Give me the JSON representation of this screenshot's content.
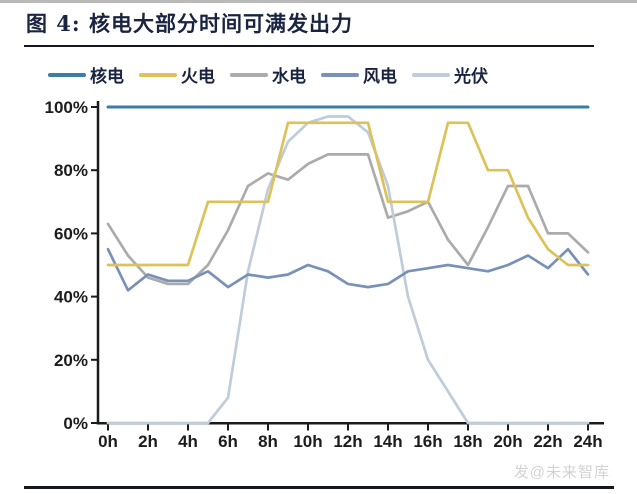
{
  "header": {
    "title": "图 4: 核电大部分时间可满发出力"
  },
  "colors": {
    "title_text": "#1a2440",
    "rule": "#16161e",
    "axis": "#1a1a1a",
    "axis_text": "#1c1c1c",
    "watermark_text": "#d2d2d2"
  },
  "watermark": {
    "text": "发@未来智库"
  },
  "chart_data": {
    "type": "line",
    "title": "核电大部分时间可满发出力",
    "xlabel": "",
    "ylabel": "",
    "xlim": [
      0,
      24
    ],
    "ylim": [
      0,
      100
    ],
    "grid": false,
    "legend_position": "top",
    "x": [
      0,
      1,
      2,
      3,
      4,
      5,
      6,
      7,
      8,
      9,
      10,
      11,
      12,
      13,
      14,
      15,
      16,
      17,
      18,
      19,
      20,
      21,
      22,
      23,
      24
    ],
    "x_tick_labels": [
      "0h",
      "2h",
      "4h",
      "6h",
      "8h",
      "10h",
      "12h",
      "14h",
      "16h",
      "18h",
      "20h",
      "22h",
      "24h"
    ],
    "x_tick_values": [
      0,
      2,
      4,
      6,
      8,
      10,
      12,
      14,
      16,
      18,
      20,
      22,
      24
    ],
    "y_tick_labels": [
      "0%",
      "20%",
      "40%",
      "60%",
      "80%",
      "100%"
    ],
    "y_tick_values": [
      0,
      20,
      40,
      60,
      80,
      100
    ],
    "series": [
      {
        "key": "nuclear",
        "name": "核电",
        "color": "#3B7DA6",
        "values": [
          100,
          100,
          100,
          100,
          100,
          100,
          100,
          100,
          100,
          100,
          100,
          100,
          100,
          100,
          100,
          100,
          100,
          100,
          100,
          100,
          100,
          100,
          100,
          100,
          100
        ]
      },
      {
        "key": "thermal",
        "name": "火电",
        "color": "#DCC258",
        "values": [
          50,
          50,
          50,
          50,
          50,
          70,
          70,
          70,
          70,
          95,
          95,
          95,
          95,
          95,
          70,
          70,
          70,
          95,
          95,
          80,
          80,
          65,
          55,
          50,
          50
        ]
      },
      {
        "key": "hydro",
        "name": "水电",
        "color": "#ABABAB",
        "values": [
          63,
          53,
          46,
          44,
          44,
          50,
          61,
          75,
          79,
          77,
          82,
          85,
          85,
          85,
          65,
          67,
          70,
          58,
          50,
          62,
          75,
          75,
          60,
          60,
          54
        ]
      },
      {
        "key": "wind",
        "name": "风电",
        "color": "#7991B8",
        "values": [
          55,
          42,
          47,
          45,
          45,
          48,
          43,
          47,
          46,
          47,
          50,
          48,
          44,
          43,
          44,
          48,
          49,
          50,
          49,
          48,
          50,
          53,
          49,
          55,
          47
        ]
      },
      {
        "key": "solar",
        "name": "光伏",
        "color": "#BFCCD9",
        "values": [
          0,
          0,
          0,
          0,
          0,
          0,
          8,
          48,
          74,
          89,
          95,
          97,
          97,
          92,
          75,
          40,
          20,
          10,
          0,
          0,
          0,
          0,
          0,
          0,
          0
        ]
      }
    ]
  }
}
